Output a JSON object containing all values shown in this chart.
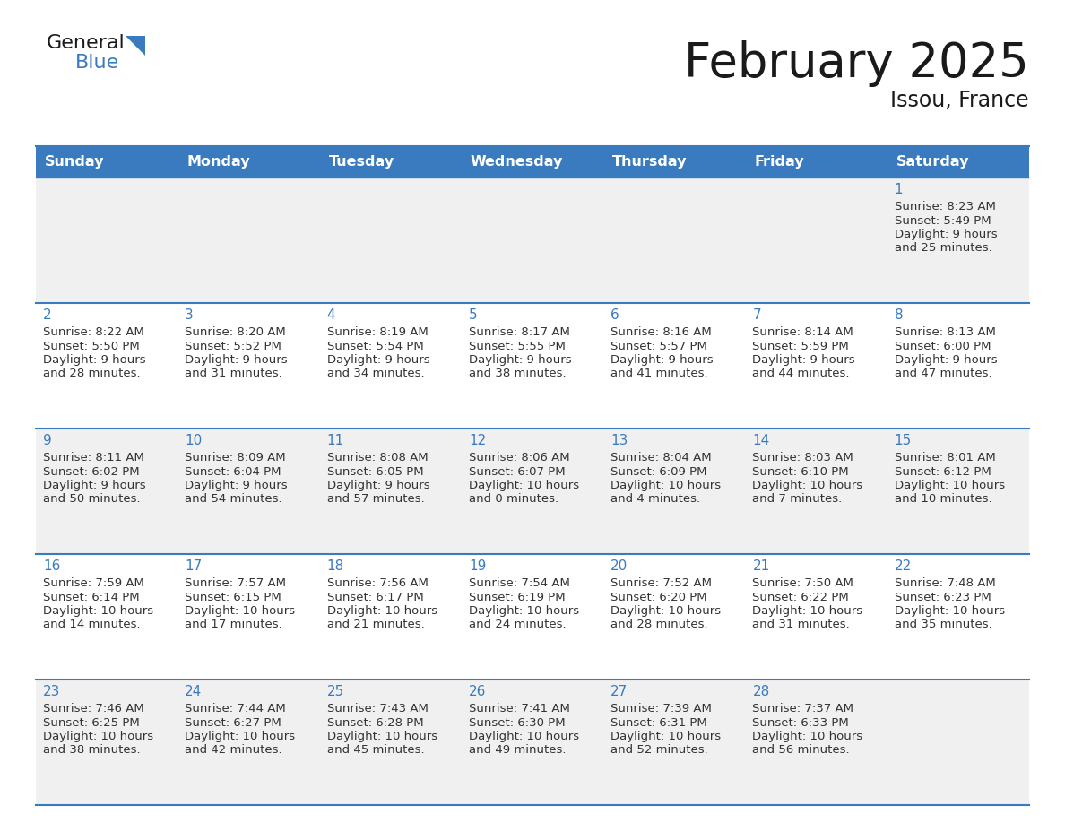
{
  "title": "February 2025",
  "subtitle": "Issou, France",
  "header_color": "#3a7bbf",
  "header_text_color": "#ffffff",
  "cell_bg_light": "#f0f0f0",
  "cell_bg_white": "#ffffff",
  "day_number_color": "#3a7bbf",
  "text_color": "#333333",
  "line_color": "#3a7bbf",
  "days_of_week": [
    "Sunday",
    "Monday",
    "Tuesday",
    "Wednesday",
    "Thursday",
    "Friday",
    "Saturday"
  ],
  "calendar_data": [
    [
      null,
      null,
      null,
      null,
      null,
      null,
      {
        "day": 1,
        "sunrise": "8:23 AM",
        "sunset": "5:49 PM",
        "daylight_l1": "Daylight: 9 hours",
        "daylight_l2": "and 25 minutes."
      }
    ],
    [
      {
        "day": 2,
        "sunrise": "8:22 AM",
        "sunset": "5:50 PM",
        "daylight_l1": "Daylight: 9 hours",
        "daylight_l2": "and 28 minutes."
      },
      {
        "day": 3,
        "sunrise": "8:20 AM",
        "sunset": "5:52 PM",
        "daylight_l1": "Daylight: 9 hours",
        "daylight_l2": "and 31 minutes."
      },
      {
        "day": 4,
        "sunrise": "8:19 AM",
        "sunset": "5:54 PM",
        "daylight_l1": "Daylight: 9 hours",
        "daylight_l2": "and 34 minutes."
      },
      {
        "day": 5,
        "sunrise": "8:17 AM",
        "sunset": "5:55 PM",
        "daylight_l1": "Daylight: 9 hours",
        "daylight_l2": "and 38 minutes."
      },
      {
        "day": 6,
        "sunrise": "8:16 AM",
        "sunset": "5:57 PM",
        "daylight_l1": "Daylight: 9 hours",
        "daylight_l2": "and 41 minutes."
      },
      {
        "day": 7,
        "sunrise": "8:14 AM",
        "sunset": "5:59 PM",
        "daylight_l1": "Daylight: 9 hours",
        "daylight_l2": "and 44 minutes."
      },
      {
        "day": 8,
        "sunrise": "8:13 AM",
        "sunset": "6:00 PM",
        "daylight_l1": "Daylight: 9 hours",
        "daylight_l2": "and 47 minutes."
      }
    ],
    [
      {
        "day": 9,
        "sunrise": "8:11 AM",
        "sunset": "6:02 PM",
        "daylight_l1": "Daylight: 9 hours",
        "daylight_l2": "and 50 minutes."
      },
      {
        "day": 10,
        "sunrise": "8:09 AM",
        "sunset": "6:04 PM",
        "daylight_l1": "Daylight: 9 hours",
        "daylight_l2": "and 54 minutes."
      },
      {
        "day": 11,
        "sunrise": "8:08 AM",
        "sunset": "6:05 PM",
        "daylight_l1": "Daylight: 9 hours",
        "daylight_l2": "and 57 minutes."
      },
      {
        "day": 12,
        "sunrise": "8:06 AM",
        "sunset": "6:07 PM",
        "daylight_l1": "Daylight: 10 hours",
        "daylight_l2": "and 0 minutes."
      },
      {
        "day": 13,
        "sunrise": "8:04 AM",
        "sunset": "6:09 PM",
        "daylight_l1": "Daylight: 10 hours",
        "daylight_l2": "and 4 minutes."
      },
      {
        "day": 14,
        "sunrise": "8:03 AM",
        "sunset": "6:10 PM",
        "daylight_l1": "Daylight: 10 hours",
        "daylight_l2": "and 7 minutes."
      },
      {
        "day": 15,
        "sunrise": "8:01 AM",
        "sunset": "6:12 PM",
        "daylight_l1": "Daylight: 10 hours",
        "daylight_l2": "and 10 minutes."
      }
    ],
    [
      {
        "day": 16,
        "sunrise": "7:59 AM",
        "sunset": "6:14 PM",
        "daylight_l1": "Daylight: 10 hours",
        "daylight_l2": "and 14 minutes."
      },
      {
        "day": 17,
        "sunrise": "7:57 AM",
        "sunset": "6:15 PM",
        "daylight_l1": "Daylight: 10 hours",
        "daylight_l2": "and 17 minutes."
      },
      {
        "day": 18,
        "sunrise": "7:56 AM",
        "sunset": "6:17 PM",
        "daylight_l1": "Daylight: 10 hours",
        "daylight_l2": "and 21 minutes."
      },
      {
        "day": 19,
        "sunrise": "7:54 AM",
        "sunset": "6:19 PM",
        "daylight_l1": "Daylight: 10 hours",
        "daylight_l2": "and 24 minutes."
      },
      {
        "day": 20,
        "sunrise": "7:52 AM",
        "sunset": "6:20 PM",
        "daylight_l1": "Daylight: 10 hours",
        "daylight_l2": "and 28 minutes."
      },
      {
        "day": 21,
        "sunrise": "7:50 AM",
        "sunset": "6:22 PM",
        "daylight_l1": "Daylight: 10 hours",
        "daylight_l2": "and 31 minutes."
      },
      {
        "day": 22,
        "sunrise": "7:48 AM",
        "sunset": "6:23 PM",
        "daylight_l1": "Daylight: 10 hours",
        "daylight_l2": "and 35 minutes."
      }
    ],
    [
      {
        "day": 23,
        "sunrise": "7:46 AM",
        "sunset": "6:25 PM",
        "daylight_l1": "Daylight: 10 hours",
        "daylight_l2": "and 38 minutes."
      },
      {
        "day": 24,
        "sunrise": "7:44 AM",
        "sunset": "6:27 PM",
        "daylight_l1": "Daylight: 10 hours",
        "daylight_l2": "and 42 minutes."
      },
      {
        "day": 25,
        "sunrise": "7:43 AM",
        "sunset": "6:28 PM",
        "daylight_l1": "Daylight: 10 hours",
        "daylight_l2": "and 45 minutes."
      },
      {
        "day": 26,
        "sunrise": "7:41 AM",
        "sunset": "6:30 PM",
        "daylight_l1": "Daylight: 10 hours",
        "daylight_l2": "and 49 minutes."
      },
      {
        "day": 27,
        "sunrise": "7:39 AM",
        "sunset": "6:31 PM",
        "daylight_l1": "Daylight: 10 hours",
        "daylight_l2": "and 52 minutes."
      },
      {
        "day": 28,
        "sunrise": "7:37 AM",
        "sunset": "6:33 PM",
        "daylight_l1": "Daylight: 10 hours",
        "daylight_l2": "and 56 minutes."
      },
      null
    ]
  ]
}
